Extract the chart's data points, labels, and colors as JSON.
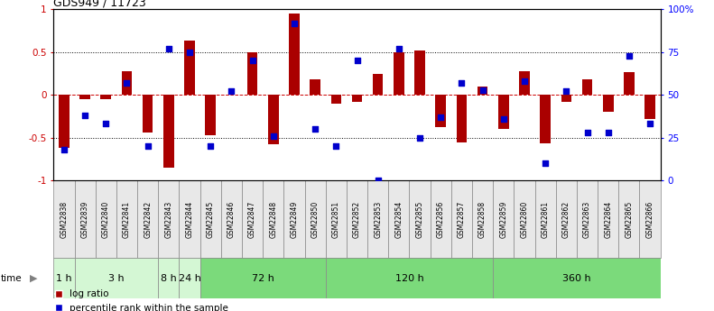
{
  "title": "GDS949 / 11723",
  "samples": [
    "GSM22838",
    "GSM22839",
    "GSM22840",
    "GSM22841",
    "GSM22842",
    "GSM22843",
    "GSM22844",
    "GSM22845",
    "GSM22846",
    "GSM22847",
    "GSM22848",
    "GSM22849",
    "GSM22850",
    "GSM22851",
    "GSM22852",
    "GSM22853",
    "GSM22854",
    "GSM22855",
    "GSM22856",
    "GSM22857",
    "GSM22858",
    "GSM22859",
    "GSM22860",
    "GSM22861",
    "GSM22862",
    "GSM22863",
    "GSM22864",
    "GSM22865",
    "GSM22866"
  ],
  "log_ratio": [
    -0.62,
    -0.05,
    -0.05,
    0.28,
    -0.44,
    -0.85,
    0.63,
    -0.47,
    0.0,
    0.5,
    -0.58,
    0.95,
    0.18,
    -0.1,
    -0.08,
    0.25,
    0.5,
    0.52,
    -0.38,
    -0.56,
    0.1,
    -0.4,
    0.28,
    -0.57,
    -0.08,
    0.18,
    -0.2,
    0.27,
    -0.28
  ],
  "percentile": [
    18,
    38,
    33,
    57,
    20,
    77,
    75,
    20,
    52,
    70,
    26,
    92,
    30,
    20,
    70,
    0,
    77,
    25,
    37,
    57,
    53,
    36,
    58,
    10,
    52,
    28,
    28,
    73,
    33
  ],
  "time_groups": [
    {
      "label": "1 h",
      "start": 0,
      "end": 1,
      "color": "#d4f7d4"
    },
    {
      "label": "3 h",
      "start": 1,
      "end": 5,
      "color": "#d4f7d4"
    },
    {
      "label": "8 h",
      "start": 5,
      "end": 6,
      "color": "#d4f7d4"
    },
    {
      "label": "24 h",
      "start": 6,
      "end": 7,
      "color": "#d4f7d4"
    },
    {
      "label": "72 h",
      "start": 7,
      "end": 13,
      "color": "#7bda7b"
    },
    {
      "label": "120 h",
      "start": 13,
      "end": 21,
      "color": "#7bda7b"
    },
    {
      "label": "360 h",
      "start": 21,
      "end": 29,
      "color": "#7bda7b"
    }
  ],
  "bar_color": "#aa0000",
  "dot_color": "#0000cc",
  "background_color": "#ffffff",
  "ylim": [
    -1,
    1
  ],
  "y2lim": [
    0,
    100
  ],
  "y2ticks": [
    0,
    25,
    50,
    75,
    100
  ],
  "y2ticklabels": [
    "0",
    "25",
    "50",
    "75",
    "100%"
  ],
  "yticks": [
    -1,
    -0.5,
    0,
    0.5,
    1
  ],
  "ytick_labels": [
    "-1",
    "-0.5",
    "0",
    "0.5",
    "1"
  ],
  "dotted_lines": [
    -0.5,
    0.5
  ],
  "zero_line_y": 0,
  "legend_red": "log ratio",
  "legend_blue": "percentile rank within the sample"
}
